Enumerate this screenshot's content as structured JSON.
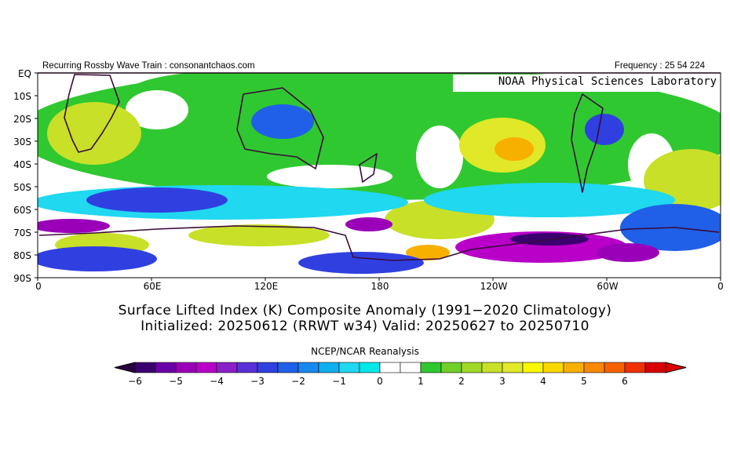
{
  "header": {
    "left": "Recurring Rossby Wave Train : consonantchaos.com",
    "right": "Frequency : 25 54 224"
  },
  "watermark": "NOAA Physical Sciences Laboratory",
  "lat_labels": [
    "EQ",
    "10S",
    "20S",
    "30S",
    "40S",
    "50S",
    "60S",
    "70S",
    "80S",
    "90S"
  ],
  "lon_labels": [
    "0",
    "60E",
    "120E",
    "180",
    "120W",
    "60W",
    "0"
  ],
  "title": {
    "line1": "Surface Lifted Index (K) Composite Anomaly (1991−2020 Climatology)",
    "line2": "Initialized: 20250612 (RRWT w34) Valid: 20250627 to 20250710"
  },
  "source": "NCEP/NCAR Reanalysis",
  "colorbar": {
    "labels": [
      "−6",
      "−5",
      "−4",
      "−3",
      "−2",
      "−1",
      "0",
      "1",
      "2",
      "3",
      "4",
      "5",
      "6"
    ],
    "colors": [
      "#3b0070",
      "#6a00a8",
      "#9a00b8",
      "#b800c8",
      "#8a20c8",
      "#5a30d8",
      "#3040e0",
      "#2060e8",
      "#1888f0",
      "#10b0f0",
      "#20d8f0",
      "#00e8e8",
      "#ffffff",
      "#ffffff",
      "#30c830",
      "#70d028",
      "#a0d828",
      "#c8e028",
      "#e0e828",
      "#f8f800",
      "#f8d800",
      "#f8b000",
      "#f88800",
      "#f86000",
      "#f03000",
      "#d80000"
    ]
  }
}
